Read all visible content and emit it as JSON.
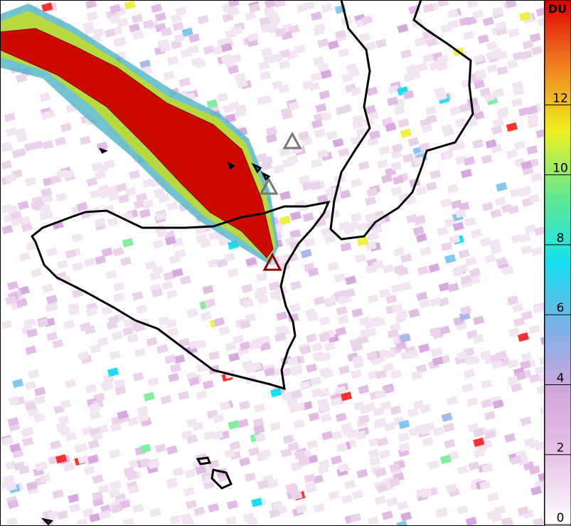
{
  "colorbar": {
    "label": "DU",
    "range": [
      0,
      15
    ],
    "ticks": [
      0,
      2,
      4,
      6,
      8,
      10,
      12
    ],
    "colors": [
      "#ffffff",
      "#e8c6e8",
      "#d6a6de",
      "#7fb0e8",
      "#18e0f0",
      "#60e890",
      "#f0f020",
      "#f08020",
      "#e00000"
    ]
  }
}
